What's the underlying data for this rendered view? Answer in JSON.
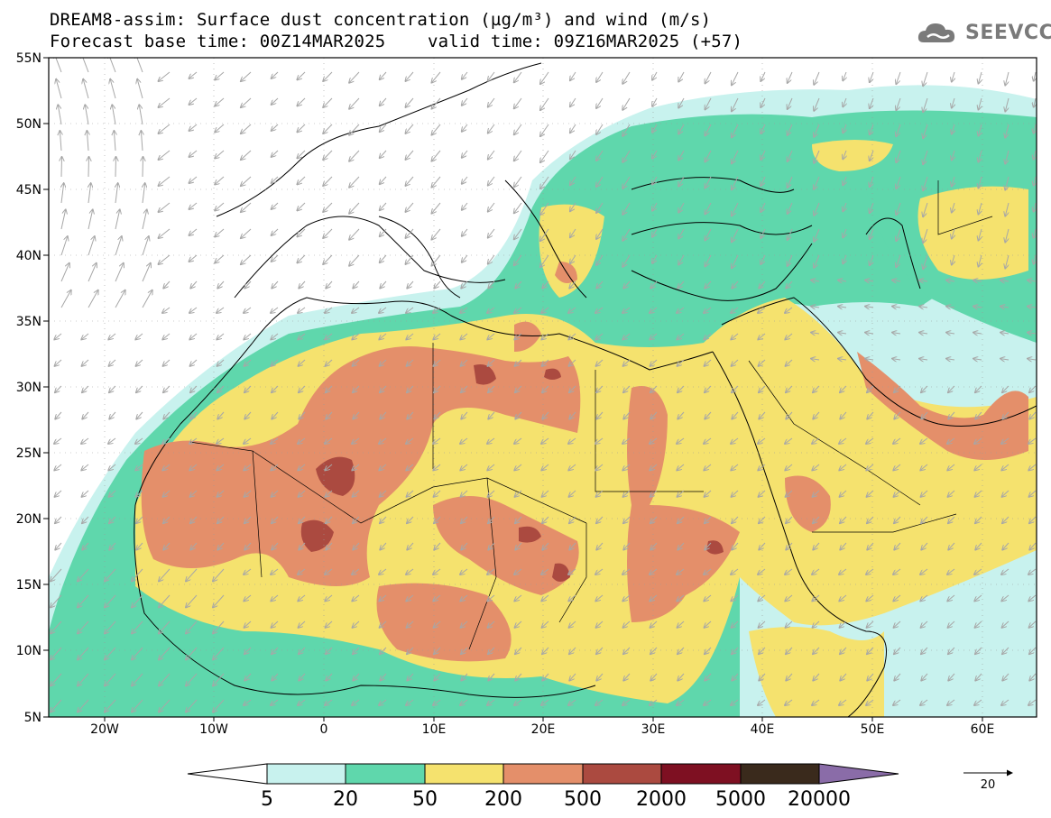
{
  "header": {
    "title_line1": "DREAM8-assim: Surface dust concentration (µg/m³) and wind (m/s)",
    "base_time": "Forecast base time: 00Z14MAR2025",
    "valid_time": "valid time: 09Z16MAR2025 (+57)"
  },
  "logo": {
    "text": "SEEVCCC",
    "icon": "cloud-logo-icon"
  },
  "axes": {
    "lat_labels": [
      "55N",
      "50N",
      "45N",
      "40N",
      "35N",
      "30N",
      "25N",
      "20N",
      "15N",
      "10N",
      "5N"
    ],
    "lon_labels": [
      "20W",
      "10W",
      "0",
      "10E",
      "20E",
      "30E",
      "40E",
      "50E",
      "60E"
    ]
  },
  "colorbar": {
    "levels": [
      "5",
      "20",
      "50",
      "200",
      "500",
      "2000",
      "5000",
      "20000"
    ],
    "colors": [
      "#c8f2ee",
      "#5fd7ac",
      "#f5e26e",
      "#e48f6a",
      "#ab4a40",
      "#7e1022",
      "#3a2a1c"
    ],
    "under_color": "#ffffff",
    "over_color": "#8a6ca8"
  },
  "wind_reference": {
    "value": "20",
    "color": "#000000"
  },
  "colors": {
    "c5": "#c8f2ee",
    "c20": "#5fd7ac",
    "c50": "#f5e26e",
    "c200": "#e48f6a",
    "c500": "#ab4a40",
    "arrow": "#a7a7a7",
    "coast": "#000000"
  }
}
